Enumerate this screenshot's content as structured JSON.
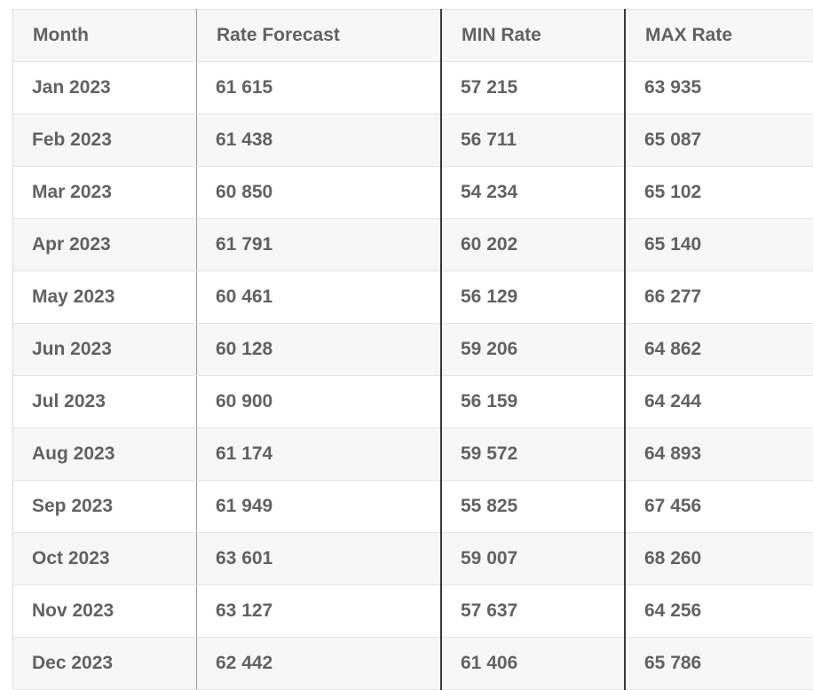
{
  "table": {
    "headers": [
      "Month",
      "Rate Forecast",
      "MIN Rate",
      "MAX Rate"
    ],
    "rows": [
      [
        "Jan 2023",
        "61 615",
        "57 215",
        "63 935"
      ],
      [
        "Feb 2023",
        "61 438",
        "56 711",
        "65 087"
      ],
      [
        "Mar 2023",
        "60 850",
        "54 234",
        "65 102"
      ],
      [
        "Apr 2023",
        "61 791",
        "60 202",
        "65 140"
      ],
      [
        "May 2023",
        "60 461",
        "56 129",
        "66 277"
      ],
      [
        "Jun 2023",
        "60 128",
        "59 206",
        "64 862"
      ],
      [
        "Jul 2023",
        "60 900",
        "56 159",
        "64 244"
      ],
      [
        "Aug 2023",
        "61 174",
        "59 572",
        "64 893"
      ],
      [
        "Sep 2023",
        "61 949",
        "55 825",
        "67 456"
      ],
      [
        "Oct 2023",
        "63 601",
        "59 007",
        "68 260"
      ],
      [
        "Nov 2023",
        "63 127",
        "57 637",
        "64 256"
      ],
      [
        "Dec 2023",
        "62 442",
        "61 406",
        "65 786"
      ]
    ]
  }
}
